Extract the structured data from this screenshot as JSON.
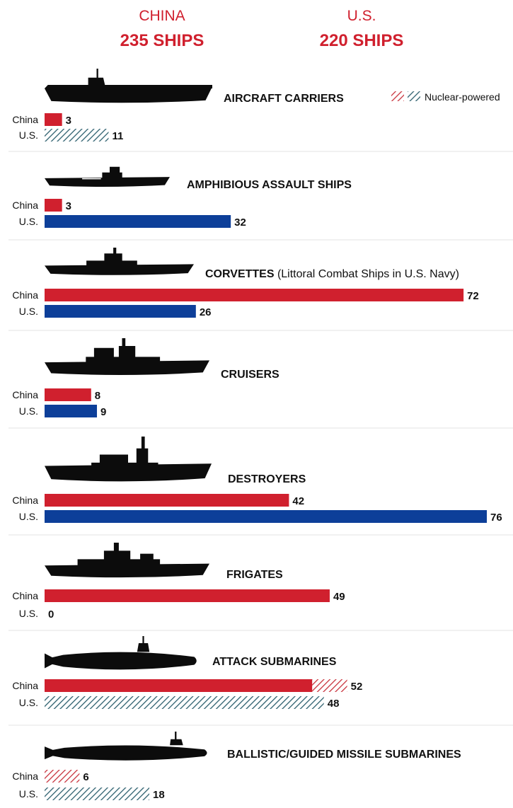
{
  "header": {
    "china": {
      "country": "CHINA",
      "total": "235 SHIPS"
    },
    "us": {
      "country": "U.S.",
      "total": "220 SHIPS"
    }
  },
  "legend": {
    "label": "Nuclear-powered"
  },
  "colors": {
    "china": "#d0202e",
    "us": "#0d3f99",
    "us_nuclear": "#2c5f6e",
    "china_nuclear": "#c8323c",
    "divider": "#e3e3e3",
    "silhouette": "#0c0c0c"
  },
  "chart_data": {
    "type": "bar",
    "orientation": "horizontal",
    "title": "China 235 ships vs U.S. 220 ships",
    "series_names": [
      "China",
      "U.S."
    ],
    "xlim": [
      0,
      76
    ],
    "categories": [
      {
        "key": "carriers",
        "title": "AIRCRAFT CARRIERS",
        "note": "",
        "icon": "aircraft-carrier-icon",
        "china": {
          "conventional": 3,
          "nuclear": 0,
          "total": 3,
          "label": "3"
        },
        "us": {
          "conventional": 0,
          "nuclear": 11,
          "total": 11,
          "label": "11"
        }
      },
      {
        "key": "amphibious",
        "title": "AMPHIBIOUS ASSAULT SHIPS",
        "note": "",
        "icon": "amphibious-ship-icon",
        "china": {
          "conventional": 3,
          "nuclear": 0,
          "total": 3,
          "label": "3"
        },
        "us": {
          "conventional": 32,
          "nuclear": 0,
          "total": 32,
          "label": "32"
        }
      },
      {
        "key": "corvettes",
        "title": "CORVETTES",
        "note": " (Littoral Combat Ships in U.S. Navy)",
        "icon": "corvette-icon",
        "china": {
          "conventional": 72,
          "nuclear": 0,
          "total": 72,
          "label": "72"
        },
        "us": {
          "conventional": 26,
          "nuclear": 0,
          "total": 26,
          "label": "26"
        }
      },
      {
        "key": "cruisers",
        "title": "CRUISERS",
        "note": "",
        "icon": "cruiser-icon",
        "china": {
          "conventional": 8,
          "nuclear": 0,
          "total": 8,
          "label": "8"
        },
        "us": {
          "conventional": 9,
          "nuclear": 0,
          "total": 9,
          "label": "9"
        }
      },
      {
        "key": "destroyers",
        "title": "DESTROYERS",
        "note": "",
        "icon": "destroyer-icon",
        "china": {
          "conventional": 42,
          "nuclear": 0,
          "total": 42,
          "label": "42"
        },
        "us": {
          "conventional": 76,
          "nuclear": 0,
          "total": 76,
          "label": "76"
        }
      },
      {
        "key": "frigates",
        "title": "FRIGATES",
        "note": "",
        "icon": "frigate-icon",
        "china": {
          "conventional": 49,
          "nuclear": 0,
          "total": 49,
          "label": "49"
        },
        "us": {
          "conventional": 0,
          "nuclear": 0,
          "total": 0,
          "label": "0"
        }
      },
      {
        "key": "attack_subs",
        "title": "ATTACK SUBMARINES",
        "note": "",
        "icon": "attack-submarine-icon",
        "china": {
          "conventional": 46,
          "nuclear": 6,
          "total": 52,
          "label": "52"
        },
        "us": {
          "conventional": 0,
          "nuclear": 48,
          "total": 48,
          "label": "48"
        }
      },
      {
        "key": "missile_subs",
        "title": "BALLISTIC/GUIDED MISSILE SUBMARINES",
        "note": "",
        "icon": "missile-submarine-icon",
        "china": {
          "conventional": 0,
          "nuclear": 6,
          "total": 6,
          "label": "6"
        },
        "us": {
          "conventional": 0,
          "nuclear": 18,
          "total": 18,
          "label": "18"
        }
      }
    ],
    "country_labels": {
      "china": "China",
      "us": "U.S."
    },
    "legend": "Nuclear-powered",
    "legend_position": "top-right"
  }
}
